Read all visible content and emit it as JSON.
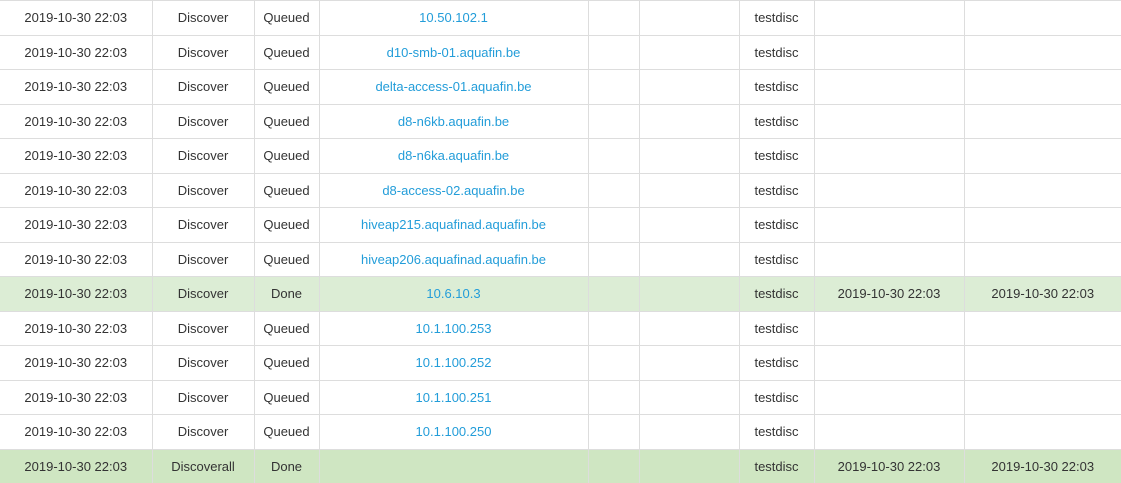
{
  "colors": {
    "text": "#333333",
    "link_blue": "#239dd9",
    "gridline": "#dddddd",
    "highlight_green": "#dcedd5",
    "highlight_green_dark": "#cfe6c2"
  },
  "table": {
    "rows": [
      {
        "timestamp": "2019-10-30 22:03",
        "action": "Discover",
        "status": "Queued",
        "target": "10.50.102.1",
        "col5": "",
        "col6": "",
        "user": "testdisc",
        "started": "",
        "finished": "",
        "highlight": "none"
      },
      {
        "timestamp": "2019-10-30 22:03",
        "action": "Discover",
        "status": "Queued",
        "target": "d10-smb-01.aquafin.be",
        "col5": "",
        "col6": "",
        "user": "testdisc",
        "started": "",
        "finished": "",
        "highlight": "none"
      },
      {
        "timestamp": "2019-10-30 22:03",
        "action": "Discover",
        "status": "Queued",
        "target": "delta-access-01.aquafin.be",
        "col5": "",
        "col6": "",
        "user": "testdisc",
        "started": "",
        "finished": "",
        "highlight": "none"
      },
      {
        "timestamp": "2019-10-30 22:03",
        "action": "Discover",
        "status": "Queued",
        "target": "d8-n6kb.aquafin.be",
        "col5": "",
        "col6": "",
        "user": "testdisc",
        "started": "",
        "finished": "",
        "highlight": "none"
      },
      {
        "timestamp": "2019-10-30 22:03",
        "action": "Discover",
        "status": "Queued",
        "target": "d8-n6ka.aquafin.be",
        "col5": "",
        "col6": "",
        "user": "testdisc",
        "started": "",
        "finished": "",
        "highlight": "none"
      },
      {
        "timestamp": "2019-10-30 22:03",
        "action": "Discover",
        "status": "Queued",
        "target": "d8-access-02.aquafin.be",
        "col5": "",
        "col6": "",
        "user": "testdisc",
        "started": "",
        "finished": "",
        "highlight": "none"
      },
      {
        "timestamp": "2019-10-30 22:03",
        "action": "Discover",
        "status": "Queued",
        "target": "hiveap215.aquafinad.aquafin.be",
        "col5": "",
        "col6": "",
        "user": "testdisc",
        "started": "",
        "finished": "",
        "highlight": "none"
      },
      {
        "timestamp": "2019-10-30 22:03",
        "action": "Discover",
        "status": "Queued",
        "target": "hiveap206.aquafinad.aquafin.be",
        "col5": "",
        "col6": "",
        "user": "testdisc",
        "started": "",
        "finished": "",
        "highlight": "none"
      },
      {
        "timestamp": "2019-10-30 22:03",
        "action": "Discover",
        "status": "Done",
        "target": "10.6.10.3",
        "col5": "",
        "col6": "",
        "user": "testdisc",
        "started": "2019-10-30 22:03",
        "finished": "2019-10-30 22:03",
        "highlight": "light"
      },
      {
        "timestamp": "2019-10-30 22:03",
        "action": "Discover",
        "status": "Queued",
        "target": "10.1.100.253",
        "col5": "",
        "col6": "",
        "user": "testdisc",
        "started": "",
        "finished": "",
        "highlight": "none"
      },
      {
        "timestamp": "2019-10-30 22:03",
        "action": "Discover",
        "status": "Queued",
        "target": "10.1.100.252",
        "col5": "",
        "col6": "",
        "user": "testdisc",
        "started": "",
        "finished": "",
        "highlight": "none"
      },
      {
        "timestamp": "2019-10-30 22:03",
        "action": "Discover",
        "status": "Queued",
        "target": "10.1.100.251",
        "col5": "",
        "col6": "",
        "user": "testdisc",
        "started": "",
        "finished": "",
        "highlight": "none"
      },
      {
        "timestamp": "2019-10-30 22:03",
        "action": "Discover",
        "status": "Queued",
        "target": "10.1.100.250",
        "col5": "",
        "col6": "",
        "user": "testdisc",
        "started": "",
        "finished": "",
        "highlight": "none"
      },
      {
        "timestamp": "2019-10-30 22:03",
        "action": "Discoverall",
        "status": "Done",
        "target": "",
        "col5": "",
        "col6": "",
        "user": "testdisc",
        "started": "2019-10-30 22:03",
        "finished": "2019-10-30 22:03",
        "highlight": "dark"
      }
    ]
  }
}
